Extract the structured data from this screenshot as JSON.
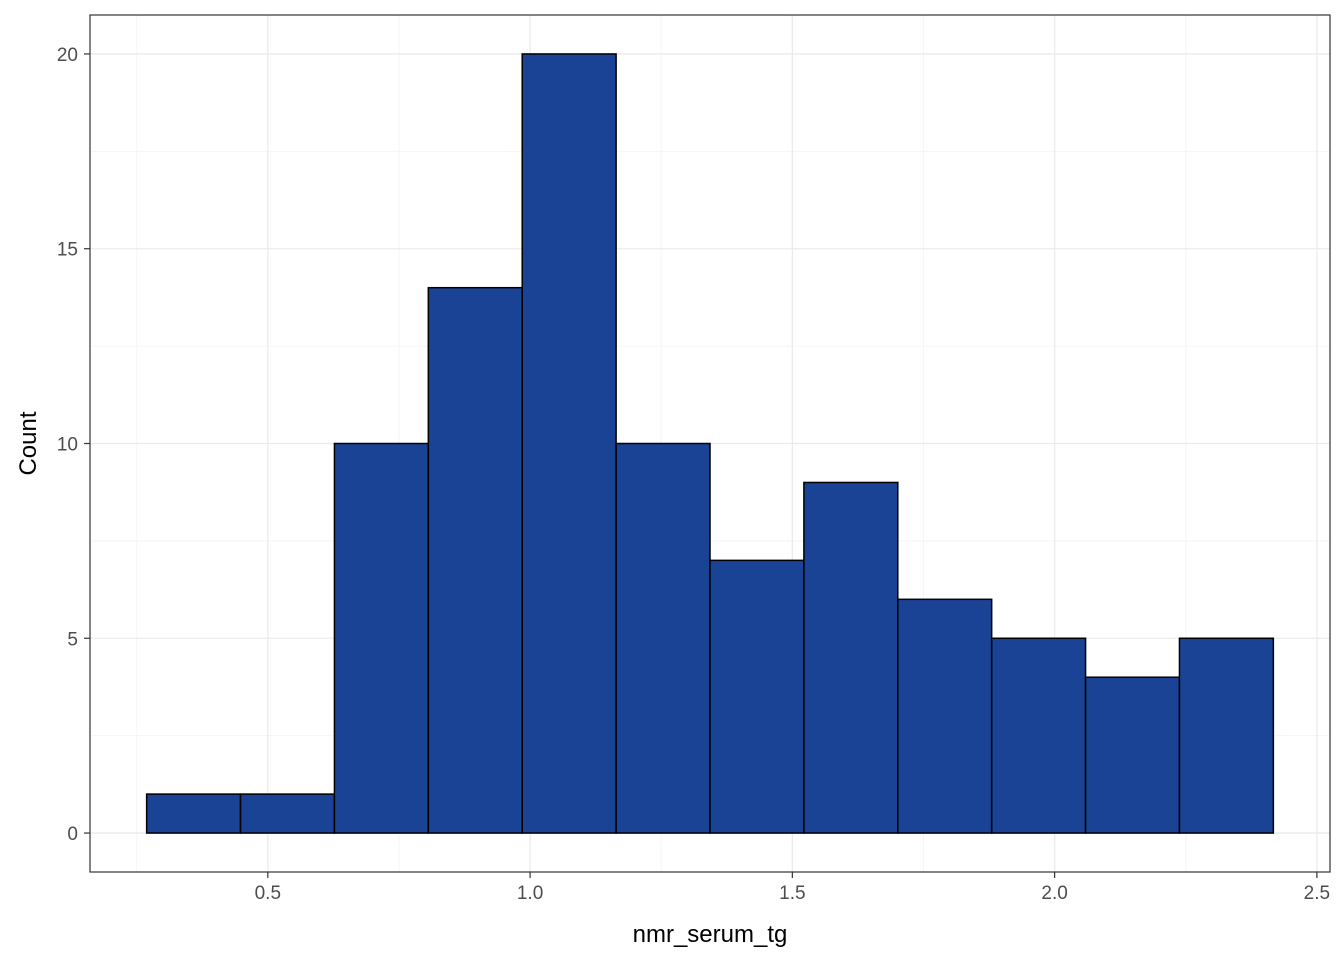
{
  "chart_data": {
    "type": "bar",
    "subtype": "histogram",
    "xlabel": "nmr_serum_tg",
    "ylabel": "Count",
    "bin_width": 0.179,
    "bins": [
      {
        "start": 0.269,
        "end": 0.448,
        "count": 1
      },
      {
        "start": 0.448,
        "end": 0.627,
        "count": 1
      },
      {
        "start": 0.627,
        "end": 0.806,
        "count": 10
      },
      {
        "start": 0.806,
        "end": 0.985,
        "count": 14
      },
      {
        "start": 0.985,
        "end": 1.164,
        "count": 20
      },
      {
        "start": 1.164,
        "end": 1.343,
        "count": 10
      },
      {
        "start": 1.343,
        "end": 1.522,
        "count": 7
      },
      {
        "start": 1.522,
        "end": 1.701,
        "count": 9
      },
      {
        "start": 1.701,
        "end": 1.88,
        "count": 6
      },
      {
        "start": 1.88,
        "end": 2.059,
        "count": 5
      },
      {
        "start": 2.059,
        "end": 2.238,
        "count": 4
      },
      {
        "start": 2.238,
        "end": 2.417,
        "count": 5
      }
    ],
    "x_ticks": [
      "0.5",
      "1.0",
      "1.5",
      "2.0",
      "2.5"
    ],
    "x_tick_values": [
      0.5,
      1.0,
      1.5,
      2.0,
      2.5
    ],
    "y_ticks": [
      "0",
      "5",
      "10",
      "15",
      "20"
    ],
    "y_tick_values": [
      0,
      5,
      10,
      15,
      20
    ],
    "xlim": [
      0.161,
      2.525
    ],
    "ylim": [
      -1,
      21
    ],
    "grid": true,
    "legend": "none",
    "colors": {
      "bar_fill": "#1a4396",
      "bar_stroke": "#000000",
      "grid_major": "#ebebeb",
      "grid_minor": "#f5f5f5",
      "panel_border": "#333333",
      "tick_text": "#4d4d4d"
    }
  }
}
